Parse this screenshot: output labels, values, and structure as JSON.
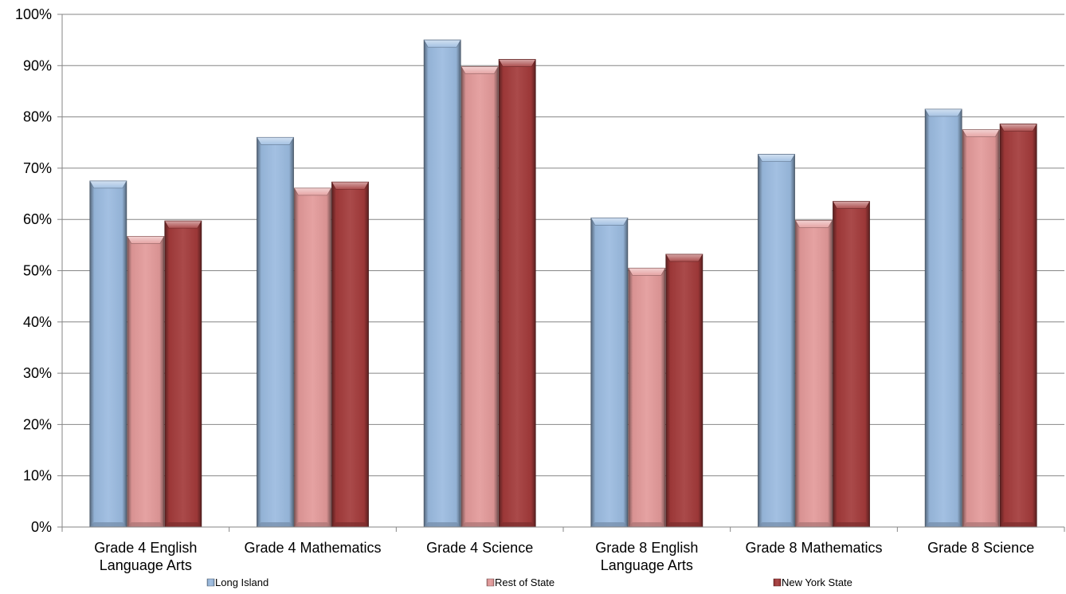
{
  "chart_data": {
    "type": "bar",
    "title": "",
    "xlabel": "",
    "ylabel": "",
    "ylim": [
      0,
      1
    ],
    "y_ticks": [
      "0%",
      "10%",
      "20%",
      "30%",
      "40%",
      "50%",
      "60%",
      "70%",
      "80%",
      "90%",
      "100%"
    ],
    "grid": "horizontal",
    "legend_position": "bottom",
    "categories": [
      [
        "Grade 4 English",
        "Language Arts"
      ],
      [
        "Grade 4 Mathematics"
      ],
      [
        "Grade 4 Science"
      ],
      [
        "Grade 8 English",
        "Language Arts"
      ],
      [
        "Grade 8 Mathematics"
      ],
      [
        "Grade 8 Science"
      ]
    ],
    "series": [
      {
        "name": "Long Island",
        "color": "#9bbbe0",
        "values": [
          0.675,
          0.76,
          0.95,
          0.603,
          0.727,
          0.815
        ]
      },
      {
        "name": "Rest of State",
        "color": "#e39a9a",
        "values": [
          0.567,
          0.661,
          0.898,
          0.505,
          0.598,
          0.775
        ]
      },
      {
        "name": "New York State",
        "color": "#a33a3a",
        "values": [
          0.597,
          0.673,
          0.912,
          0.532,
          0.635,
          0.786
        ]
      }
    ]
  }
}
